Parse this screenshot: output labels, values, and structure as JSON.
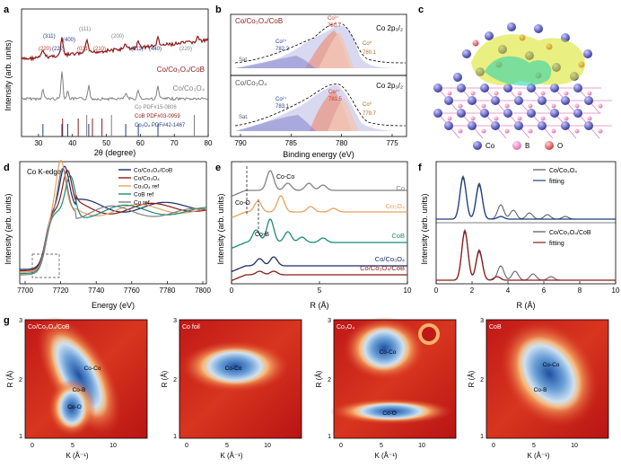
{
  "colors": {
    "dark_red": "#8b1a1a",
    "gray": "#808080",
    "blue": "#1f3c88",
    "orange": "#e8a15f",
    "teal": "#1a8a7a",
    "red": "#c0392b",
    "navy": "#1b2a6b"
  },
  "panel_letters": {
    "a": "a",
    "b": "b",
    "c": "c",
    "d": "d",
    "e": "e",
    "f": "f",
    "g": "g"
  },
  "chart_data": [
    {
      "panel": "a",
      "type": "line",
      "xlabel": "2θ (degree)",
      "ylabel": "Intensity (arb. units)",
      "xlim": [
        25,
        80
      ],
      "xticks": [
        "30",
        "40",
        "50",
        "60",
        "70",
        "80"
      ],
      "series": [
        {
          "name": "Co/Co3O4/CoB",
          "legend": "Co/Co₃O₄/CoB"
        },
        {
          "name": "Co/Co3O4",
          "legend": "Co/Co₃O₄"
        }
      ],
      "references": [
        "Co PDF#15-0806",
        "CoB PDF#03-0959",
        "Co₃O₄ PDF#42-1467"
      ],
      "ref_lines": {
        "co": [
          44.2,
          51.5,
          75.9
        ],
        "cob": [
          37.1,
          41.7,
          45.9,
          48.7
        ],
        "co3o4": [
          19.0,
          31.3,
          36.9,
          38.6,
          44.8,
          55.7,
          59.4,
          65.2
        ]
      },
      "peak_labels": [
        "(311)",
        "(222)",
        "(220)",
        "(111)",
        "(400)",
        "(021)",
        "(210)",
        "(200)",
        "(511)",
        "(440)",
        "(220)"
      ]
    },
    {
      "panel": "b",
      "type": "line",
      "xlabel": "Binding energy (eV)",
      "xlim": [
        795,
        773
      ],
      "xticks": [
        "790",
        "785",
        "780",
        "775"
      ],
      "subpanels": [
        {
          "label": "Co/Co₃O₄/CoB",
          "edge": "Co 2p₃/₂",
          "peaks": [
            {
              "name": "Co³⁺",
              "value": "780.7"
            },
            {
              "name": "Co²⁺",
              "value": "782.2"
            },
            {
              "name": "Co⁰",
              "value": "780.1"
            }
          ],
          "sat": "Sat."
        },
        {
          "label": "Co/Co₃O₄",
          "edge": "Co 2p₃/₂",
          "peaks": [
            {
              "name": "Co³⁺",
              "value": "781.5"
            },
            {
              "name": "Co²⁺",
              "value": "783.1"
            },
            {
              "name": "Co⁰",
              "value": "779.7"
            }
          ],
          "sat": "Sat."
        }
      ]
    },
    {
      "panel": "c",
      "type": "diagram",
      "legend": [
        "Co",
        "B",
        "O"
      ]
    },
    {
      "panel": "d",
      "type": "line",
      "xlabel": "Energy (eV)",
      "ylabel": "Intensity (arb. units)",
      "title": "Co K-edge",
      "xlim": [
        7700,
        7800
      ],
      "xticks": [
        "7700",
        "7720",
        "7740",
        "7760",
        "7780",
        "7800"
      ],
      "series": [
        {
          "name": "Co/Co₃O₄/CoB"
        },
        {
          "name": "Co/Co₃O₄"
        },
        {
          "name": "Co₃O₄ ref"
        },
        {
          "name": "CoB ref"
        },
        {
          "name": "Co ref"
        }
      ]
    },
    {
      "panel": "e",
      "type": "line",
      "xlabel": "R (Å)",
      "ylabel": "Intensity (arb. units)",
      "xlim": [
        0,
        10
      ],
      "xticks": [
        "0",
        "5",
        "10"
      ],
      "series": [
        {
          "name": "Co"
        },
        {
          "name": "Co₃O₄"
        },
        {
          "name": "CoB"
        },
        {
          "name": "Co/Co₃O₄"
        },
        {
          "name": "Co/Co₃O₄/CoB"
        }
      ],
      "annotations": [
        "Co-Co",
        "Co-O",
        "Co-B"
      ]
    },
    {
      "panel": "f",
      "type": "line",
      "xlabel": "R (Å)",
      "ylabel": "Intensity (arb. units)",
      "xlim": [
        0,
        10
      ],
      "xticks": [
        "0",
        "2",
        "4",
        "6",
        "8",
        "10"
      ],
      "subpanels": [
        {
          "legend": [
            "Co/Co₃O₄",
            "fitting"
          ]
        },
        {
          "legend": [
            "Co/Co₃O₄/CoB",
            "fitting"
          ]
        }
      ]
    },
    {
      "panel": "g",
      "type": "heatmap",
      "xlabel": "K (Å⁻¹)",
      "ylabel": "R (Å)",
      "xticks": [
        "0",
        "5",
        "10"
      ],
      "yticks": [
        "1",
        "2",
        "3"
      ],
      "maps": [
        {
          "title": "Co/Co₃O₄/CoB",
          "labels": [
            "Co-Co",
            "Co-B",
            "Co-O"
          ]
        },
        {
          "title": "Co foil",
          "labels": [
            "Co-Co"
          ]
        },
        {
          "title": "Co₃O₄",
          "labels": [
            "Co-Co",
            "Co-O"
          ]
        },
        {
          "title": "CoB",
          "labels": [
            "Co-Co",
            "Co-B"
          ]
        }
      ]
    }
  ]
}
